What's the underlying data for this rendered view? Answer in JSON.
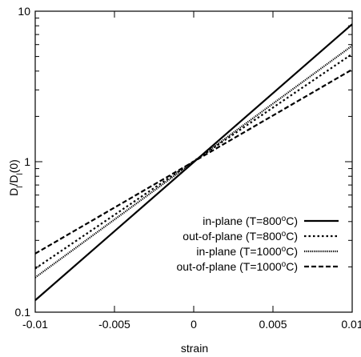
{
  "chart_data": {
    "type": "line",
    "title": "",
    "xlabel": "strain",
    "ylabel": "D_l/D_l(0)",
    "xlim": [
      -0.01,
      0.01
    ],
    "ylim": [
      0.1,
      10
    ],
    "yscale": "log",
    "grid": false,
    "legend_position": "bottom-right",
    "x_ticks": [
      "-0.01",
      "-0.005",
      "0",
      "0.005",
      "0.01"
    ],
    "y_ticks": [
      "0.1",
      "1",
      "10"
    ],
    "y_tick_values": [
      0.1,
      1,
      10
    ],
    "x_tick_values": [
      -0.01,
      -0.005,
      0,
      0.005,
      0.01
    ],
    "series": [
      {
        "name": "in-plane (T=800°C)",
        "name_parts": [
          "in-plane (T=800",
          "o",
          "C)"
        ],
        "style": "solid",
        "x": [
          -0.01,
          0.01
        ],
        "y": [
          0.12,
          8.2
        ]
      },
      {
        "name": "out-of-plane (T=800°C)",
        "name_parts": [
          "out-of-plane (T=800",
          "o",
          "C)"
        ],
        "style": "dotted",
        "x": [
          -0.01,
          0.01
        ],
        "y": [
          0.195,
          5.2
        ]
      },
      {
        "name": "in-plane (T=1000°C)",
        "name_parts": [
          "in-plane (T=1000",
          "o",
          "C)"
        ],
        "style": "dense-dotted",
        "x": [
          -0.01,
          0.01
        ],
        "y": [
          0.17,
          5.9
        ]
      },
      {
        "name": "out-of-plane (T=1000°C)",
        "name_parts": [
          "out-of-plane (T=1000",
          "o",
          "C)"
        ],
        "style": "dashed",
        "x": [
          -0.01,
          0.01
        ],
        "y": [
          0.245,
          4.1
        ]
      }
    ]
  }
}
